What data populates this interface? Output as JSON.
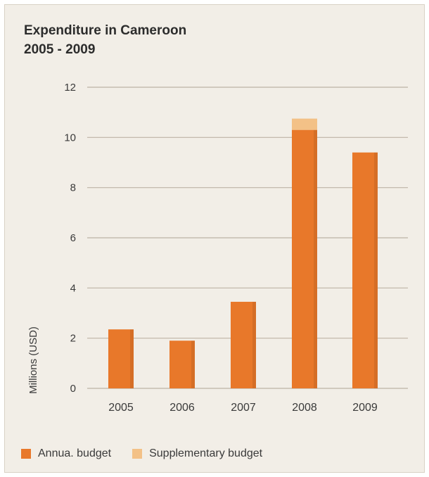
{
  "colors": {
    "annual": "#e8782a",
    "supplementary": "#f3c187",
    "grid": "#bdb3a6",
    "text": "#3a3a3a"
  },
  "chart_data": {
    "type": "bar",
    "title_line1": "Expenditure in Cameroon",
    "title_line2": "2005 - 2009",
    "ylabel": "Millions (USD)",
    "xlabel": "",
    "categories": [
      "2005",
      "2006",
      "2007",
      "2008",
      "2009"
    ],
    "series": [
      {
        "name": "Annua. budget",
        "values": [
          2.35,
          1.9,
          3.45,
          10.3,
          9.4
        ]
      },
      {
        "name": "Supplementary budget",
        "values": [
          0,
          0,
          0,
          0.45,
          0
        ]
      }
    ],
    "ylim": [
      0,
      12
    ],
    "yticks": [
      "0",
      "2",
      "4",
      "6",
      "8",
      "10",
      "12"
    ],
    "stacked": true,
    "grid": true,
    "legend_position": "bottom-left"
  }
}
